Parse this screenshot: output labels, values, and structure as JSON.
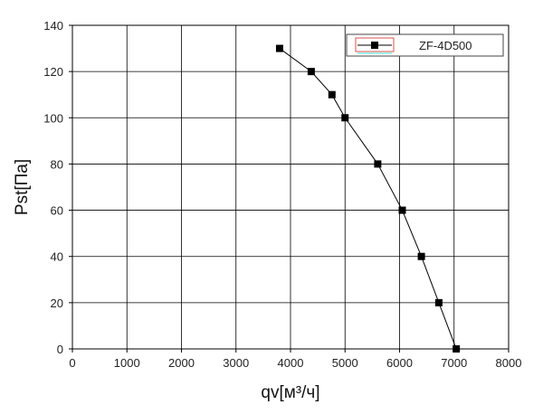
{
  "chart_data": {
    "type": "line",
    "title": "",
    "xlabel": "qv[м³/ч]",
    "ylabel": "Pst[Па]",
    "xlim": [
      0,
      8000
    ],
    "ylim": [
      0,
      140
    ],
    "x_ticks": [
      0,
      1000,
      2000,
      3000,
      4000,
      5000,
      6000,
      7000,
      8000
    ],
    "y_ticks": [
      0,
      20,
      40,
      60,
      80,
      100,
      120,
      140
    ],
    "grid": true,
    "legend_position": "top-right",
    "series": [
      {
        "name": "ZF-4D500",
        "marker": "square",
        "color": "#000000",
        "x": [
          3800,
          4380,
          4760,
          5000,
          5600,
          6050,
          6400,
          6720,
          7040
        ],
        "y": [
          130,
          120,
          110,
          100,
          80,
          60,
          40,
          20,
          0
        ]
      }
    ]
  }
}
